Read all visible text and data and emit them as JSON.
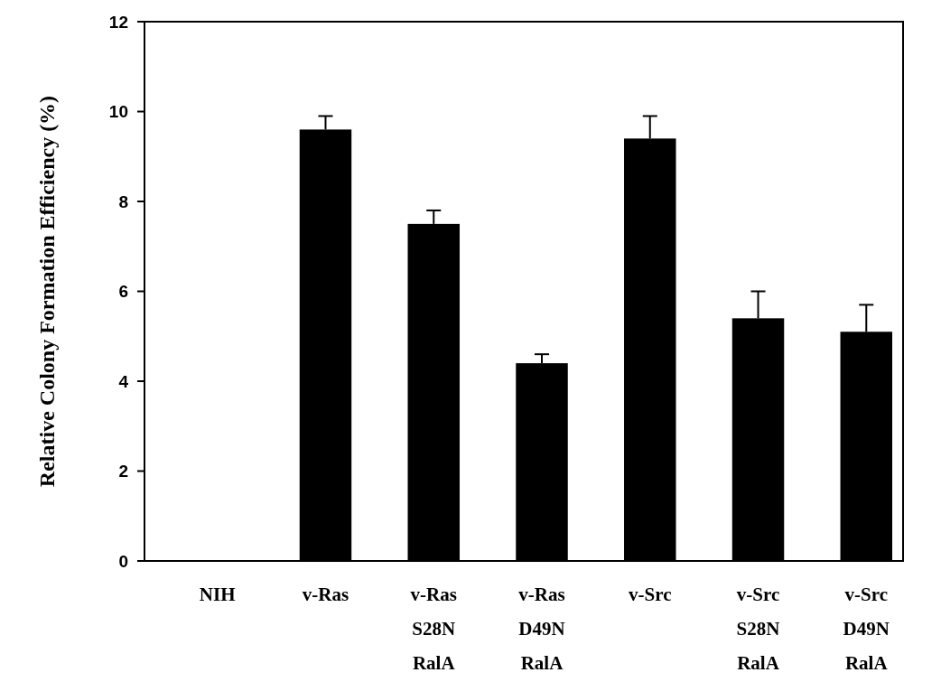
{
  "chart_data": {
    "type": "bar",
    "ylabel": "Relative Colony Formation Efficiency (%)",
    "categories": [
      "NIH",
      "v-Ras",
      "v-Ras\nS28N\nRalA",
      "v-Ras\nD49N\nRalA",
      "v-Src",
      "v-Src\nS28N\nRalA",
      "v-Src\nD49N\nRalA"
    ],
    "values": [
      0,
      9.6,
      7.5,
      4.4,
      9.4,
      5.4,
      5.1
    ],
    "errors": [
      null,
      [
        9.6,
        9.9
      ],
      [
        7.5,
        7.8
      ],
      [
        4.4,
        4.6
      ],
      [
        9.4,
        9.9
      ],
      [
        5.4,
        6.0
      ],
      [
        5.1,
        5.7
      ]
    ],
    "color": "#000000",
    "ylim": [
      0,
      12
    ],
    "yticks": [
      0,
      2,
      4,
      6,
      8,
      10,
      12
    ],
    "grid": false
  }
}
